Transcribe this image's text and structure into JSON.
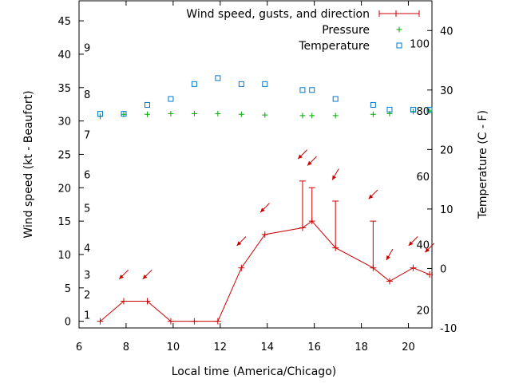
{
  "chart_data": {
    "type": "line",
    "xlabel": "Local time (America/Chicago)",
    "ylabel": "Wind speed (kt - Beaufort)",
    "y2label": "Temperature (C - F)",
    "xlim": [
      6,
      21
    ],
    "ylim": [
      -1,
      48
    ],
    "y2lim": [
      -10,
      45
    ],
    "x_ticks": [
      6,
      8,
      10,
      12,
      14,
      16,
      18,
      20
    ],
    "y_ticks": [
      0,
      5,
      10,
      15,
      20,
      25,
      30,
      35,
      40,
      45
    ],
    "y2_ticks": [
      -10,
      0,
      10,
      20,
      30,
      40
    ],
    "beaufort_labels": [
      {
        "label": "1",
        "y": 1
      },
      {
        "label": "2",
        "y": 4
      },
      {
        "label": "3",
        "y": 7
      },
      {
        "label": "4",
        "y": 11
      },
      {
        "label": "5",
        "y": 17
      },
      {
        "label": "6",
        "y": 22
      },
      {
        "label": "7",
        "y": 28
      },
      {
        "label": "8",
        "y": 34
      },
      {
        "label": "9",
        "y": 41
      }
    ],
    "fahrenheit_labels": [
      {
        "label": "20",
        "y2": -7
      },
      {
        "label": "40",
        "y2": 4
      },
      {
        "label": "60",
        "y2": 15.5
      },
      {
        "label": "80",
        "y2": 26.5
      },
      {
        "label": "100",
        "y2": 37.8
      }
    ],
    "legend": {
      "position": "top-right",
      "entries": [
        "Wind speed, gusts, and direction",
        "Pressure",
        "Temperature"
      ]
    },
    "colors": {
      "wind": "#cc0000",
      "pressure": "#00aa00",
      "temperature": "#0077cc"
    },
    "series": [
      {
        "name": "Wind speed, gusts, and direction",
        "axis": "left",
        "x": [
          6.9,
          7.9,
          8.9,
          9.9,
          10.9,
          11.9,
          12.9,
          13.9,
          15.5,
          15.9,
          16.9,
          18.5,
          19.2,
          20.2,
          20.9
        ],
        "values": [
          0,
          3,
          3,
          0,
          0,
          0,
          8,
          13,
          14,
          15,
          11,
          8,
          6,
          8,
          7
        ],
        "gusts": [
          null,
          null,
          null,
          null,
          null,
          null,
          null,
          null,
          21,
          20,
          18,
          15,
          null,
          null,
          null
        ],
        "direction_deg": [
          null,
          45,
          45,
          null,
          null,
          null,
          45,
          45,
          45,
          45,
          30,
          45,
          30,
          45,
          45
        ],
        "arrow_y": [
          null,
          7,
          7,
          null,
          null,
          null,
          12,
          17,
          25,
          24,
          22,
          19,
          10,
          12,
          11
        ]
      },
      {
        "name": "Pressure",
        "axis": "left",
        "x": [
          6.9,
          7.9,
          8.9,
          9.9,
          10.9,
          11.9,
          12.9,
          13.9,
          15.5,
          15.9,
          16.9,
          18.5,
          19.2,
          20.2,
          20.9
        ],
        "values": [
          30.7,
          31,
          31,
          31.1,
          31.1,
          31.1,
          31,
          30.9,
          30.8,
          30.8,
          30.8,
          31,
          31.1,
          31.4,
          31.5
        ]
      },
      {
        "name": "Temperature",
        "axis": "right",
        "x": [
          6.9,
          7.9,
          8.9,
          9.9,
          10.9,
          11.9,
          12.9,
          13.9,
          15.5,
          15.9,
          16.9,
          18.5,
          19.2,
          20.2,
          20.9
        ],
        "values": [
          26,
          26,
          27.5,
          28.5,
          31,
          32,
          31,
          31,
          30,
          30,
          28.5,
          27.5,
          26.7,
          26.7,
          26.7
        ]
      }
    ]
  }
}
